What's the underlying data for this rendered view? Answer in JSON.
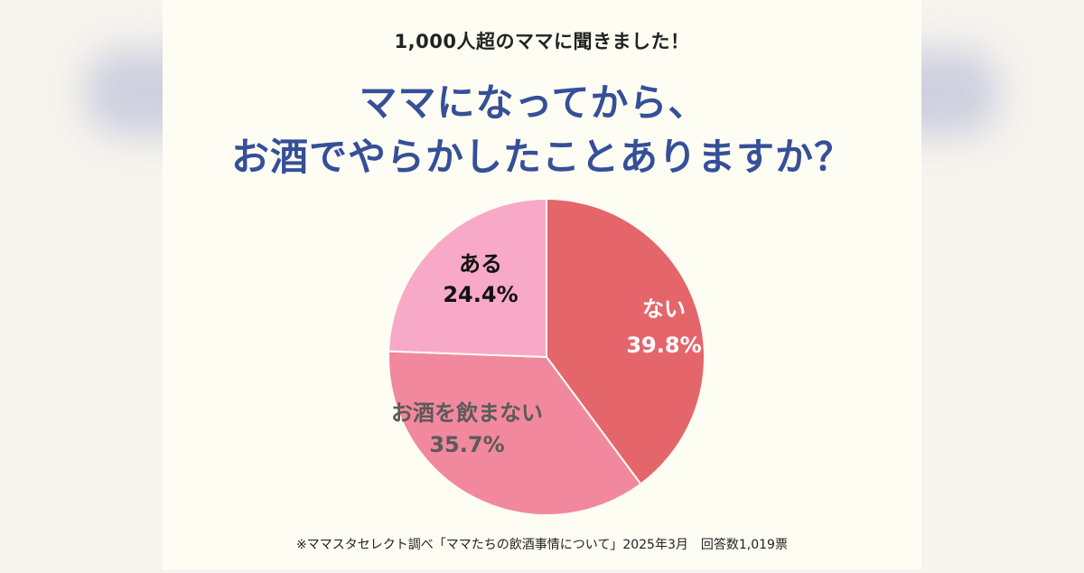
{
  "header": {
    "subtitle": "1,000人超のママに聞きました！",
    "title_line_1": "ママになってから、",
    "title_line_2": "お酒でやらかしたことありますか？"
  },
  "footer": {
    "note": "※ママスタセレクト調べ「ママたちの飲酒事情について」2025年3月　回答数1,019票"
  },
  "chart_data": {
    "type": "pie",
    "categories": [
      "ない",
      "お酒を飲まない",
      "ある"
    ],
    "values": [
      39.8,
      35.7,
      24.4
    ],
    "value_labels": [
      "39.8%",
      "35.7%",
      "24.4%"
    ],
    "colors": [
      "#e4666b",
      "#f2889e",
      "#f7a9c7"
    ],
    "label_colors": [
      "#ffffff",
      "#5a5a5a",
      "#111111"
    ]
  }
}
